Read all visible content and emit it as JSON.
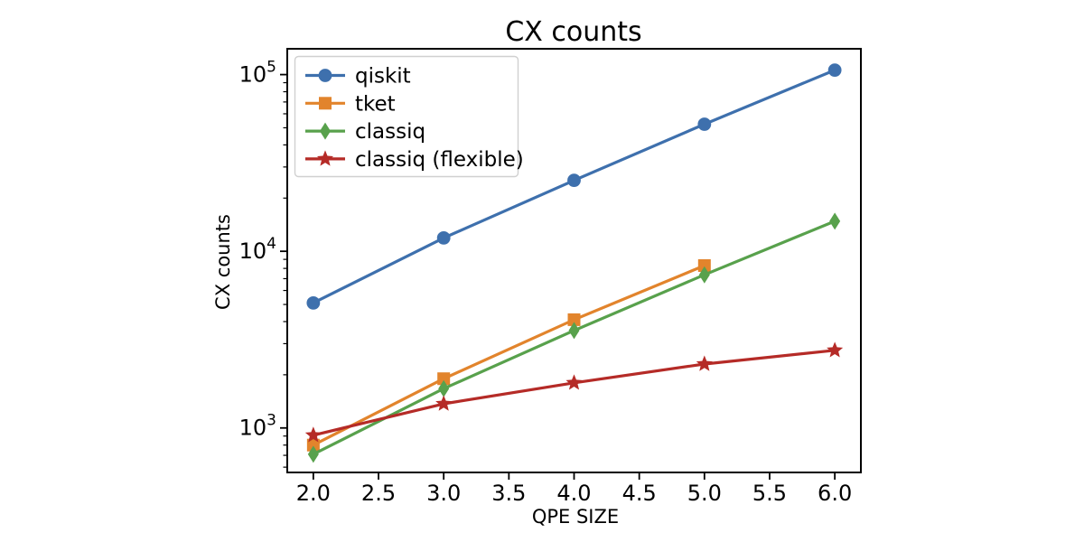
{
  "figure": {
    "background": "#ffffff",
    "frame_color": "#000000",
    "legend_border_color": "#d0d0d0",
    "legend_background": "#ffffff"
  },
  "chart_data": {
    "type": "line",
    "title": "CX counts",
    "xlabel": "QPE SIZE",
    "ylabel": "CX counts",
    "yscale": "log",
    "grid": false,
    "legend_position": "upper left",
    "xlim": [
      1.8,
      6.2
    ],
    "ylim": [
      560,
      140000
    ],
    "x_ticks": [
      2.0,
      2.5,
      3.0,
      3.5,
      4.0,
      4.5,
      5.0,
      5.5,
      6.0
    ],
    "x_tick_labels": [
      "2.0",
      "2.5",
      "3.0",
      "3.5",
      "4.0",
      "4.5",
      "5.0",
      "5.5",
      "6.0"
    ],
    "y_ticks": [
      1000,
      10000,
      100000
    ],
    "y_tick_labels": [
      "10^3",
      "10^4",
      "10^5"
    ],
    "y_minor_ticks": [
      600,
      700,
      800,
      900,
      2000,
      3000,
      4000,
      5000,
      6000,
      7000,
      8000,
      9000,
      20000,
      30000,
      40000,
      50000,
      60000,
      70000,
      80000,
      90000
    ],
    "series": [
      {
        "name": "qiskit",
        "color": "#3e70ad",
        "marker": "circle",
        "x": [
          2,
          3,
          4,
          5,
          6
        ],
        "y": [
          5100,
          11900,
          25200,
          52400,
          106000
        ]
      },
      {
        "name": "tket",
        "color": "#e2842c",
        "marker": "square",
        "x": [
          2,
          3,
          4,
          5
        ],
        "y": [
          800,
          1900,
          4100,
          8300
        ]
      },
      {
        "name": "classiq",
        "color": "#58a14c",
        "marker": "diamond",
        "x": [
          2,
          3,
          4,
          5,
          6
        ],
        "y": [
          710,
          1670,
          3560,
          7360,
          14800
        ]
      },
      {
        "name": "classiq (flexible)",
        "color": "#b52b27",
        "marker": "star",
        "x": [
          2,
          3,
          4,
          5,
          6
        ],
        "y": [
          910,
          1370,
          1800,
          2300,
          2750
        ]
      }
    ]
  }
}
